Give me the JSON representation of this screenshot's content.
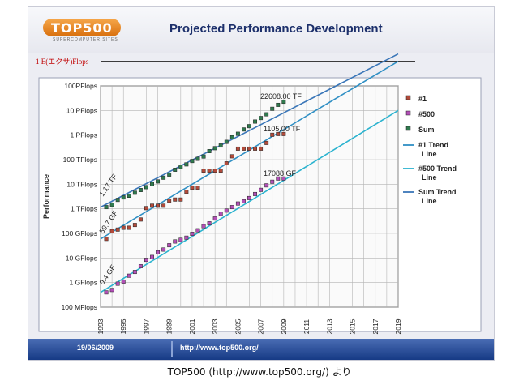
{
  "slide": {
    "title": "Projected Performance Development",
    "logo_text": "TOP500",
    "logo_sub": "SUPERCOMPUTER SITES",
    "footer_date": "19/06/2009",
    "footer_url": "http://www.top500.org/"
  },
  "caption": "TOP500 (http://www.top500.org/) より",
  "colors": {
    "number1": "#b24a3a",
    "number500": "#b24fb6",
    "sum": "#2f7a4e",
    "trend_number1": "#2f8fc4",
    "trend_number500": "#2bb3cf",
    "trend_sum": "#3a76b8",
    "exa_line": "#000000",
    "exa_label": "#c00000"
  },
  "chart_data": {
    "type": "scatter",
    "title": "Projected Performance Development",
    "ylabel": "Performance",
    "xlabel": "",
    "y_scale": "log",
    "ylim": [
      "100 MFlops",
      "100PFlops"
    ],
    "xlim": [
      1993,
      2019
    ],
    "grid": true,
    "legend_position": "right",
    "x_tick_labels": [
      "1993",
      "1995",
      "1997",
      "1999",
      "2001",
      "2003",
      "2005",
      "2007",
      "2009",
      "2011",
      "2013",
      "2015",
      "2017",
      "2019"
    ],
    "y_tick_labels": [
      "100 MFlops",
      "1 GFlops",
      "10 GFlops",
      "100 GFlops",
      "1 TFlops",
      "10 TFlops",
      "100 TFlops",
      "1 PFlops",
      "10 PFlops",
      "100PFlops"
    ],
    "exaflops_label": "1 E(エクサ)Flops",
    "annotations": [
      "1.17 TF",
      "59.7 GF",
      "0.4 GF",
      "22608.00 TF",
      "1105.00 TF",
      "17088 GF"
    ],
    "legend": [
      "#1",
      "#500",
      "Sum",
      "#1 Trend Line",
      "#500 Trend Line",
      "Sum Trend Line"
    ],
    "series": [
      {
        "name": "#1",
        "marker": "square",
        "x": [
          1993.5,
          1994.0,
          1994.5,
          1995.0,
          1995.5,
          1996.0,
          1996.5,
          1997.0,
          1997.5,
          1998.0,
          1998.5,
          1999.0,
          1999.5,
          2000.0,
          2000.5,
          2001.0,
          2001.5,
          2002.0,
          2002.5,
          2003.0,
          2003.5,
          2004.0,
          2004.5,
          2005.0,
          2005.5,
          2006.0,
          2006.5,
          2007.0,
          2007.5,
          2008.0,
          2008.5,
          2009.0
        ],
        "y_gflops": [
          59.7,
          124,
          143,
          170,
          170,
          220,
          368,
          1068,
          1338,
          1338,
          1338,
          2121,
          2379,
          2379,
          4938,
          7226,
          7226,
          35860,
          35860,
          35860,
          35860,
          70720,
          136800,
          280600,
          280600,
          280600,
          280600,
          280600,
          478200,
          1026000,
          1105000,
          1105000
        ]
      },
      {
        "name": "#500",
        "marker": "square",
        "x": [
          1993.5,
          1994.0,
          1994.5,
          1995.0,
          1995.5,
          1996.0,
          1996.5,
          1997.0,
          1997.5,
          1998.0,
          1998.5,
          1999.0,
          1999.5,
          2000.0,
          2000.5,
          2001.0,
          2001.5,
          2002.0,
          2002.5,
          2003.0,
          2003.5,
          2004.0,
          2004.5,
          2005.0,
          2005.5,
          2006.0,
          2006.5,
          2007.0,
          2007.5,
          2008.0,
          2008.5,
          2009.0
        ],
        "y_gflops": [
          0.4,
          0.5,
          0.9,
          1.1,
          1.9,
          2.7,
          4.6,
          8.4,
          11,
          17,
          22,
          33,
          47,
          55,
          67,
          96,
          134,
          196,
          257,
          403,
          624,
          850,
          1170,
          1640,
          2030,
          2740,
          4000,
          5900,
          9000,
          12600,
          17088,
          17088
        ]
      },
      {
        "name": "Sum",
        "marker": "square",
        "x": [
          1993.5,
          1994.0,
          1994.5,
          1995.0,
          1995.5,
          1996.0,
          1996.5,
          1997.0,
          1997.5,
          1998.0,
          1998.5,
          1999.0,
          1999.5,
          2000.0,
          2000.5,
          2001.0,
          2001.5,
          2002.0,
          2002.5,
          2003.0,
          2003.5,
          2004.0,
          2004.5,
          2005.0,
          2005.5,
          2006.0,
          2006.5,
          2007.0,
          2007.5,
          2008.0,
          2008.5,
          2009.0
        ],
        "y_gflops": [
          1170,
          1450,
          2300,
          2900,
          3400,
          4500,
          5800,
          7600,
          10200,
          13000,
          18400,
          24700,
          38800,
          50800,
          64200,
          88100,
          108000,
          134000,
          222000,
          293000,
          375000,
          528000,
          813000,
          1127000,
          1690000,
          2300000,
          3540000,
          4920000,
          6970000,
          11700000,
          16900000,
          22608000
        ]
      },
      {
        "name": "#1 Trend Line",
        "line": true,
        "x": [
          1993,
          2019
        ],
        "y_gflops": [
          59.7,
          1000000000
        ]
      },
      {
        "name": "#500 Trend Line",
        "line": true,
        "x": [
          1993,
          2019
        ],
        "y_gflops": [
          0.4,
          10000000
        ]
      },
      {
        "name": "Sum Trend Line",
        "line": true,
        "x": [
          1993,
          2019
        ],
        "y_gflops": [
          1170,
          2000000000
        ]
      }
    ]
  }
}
